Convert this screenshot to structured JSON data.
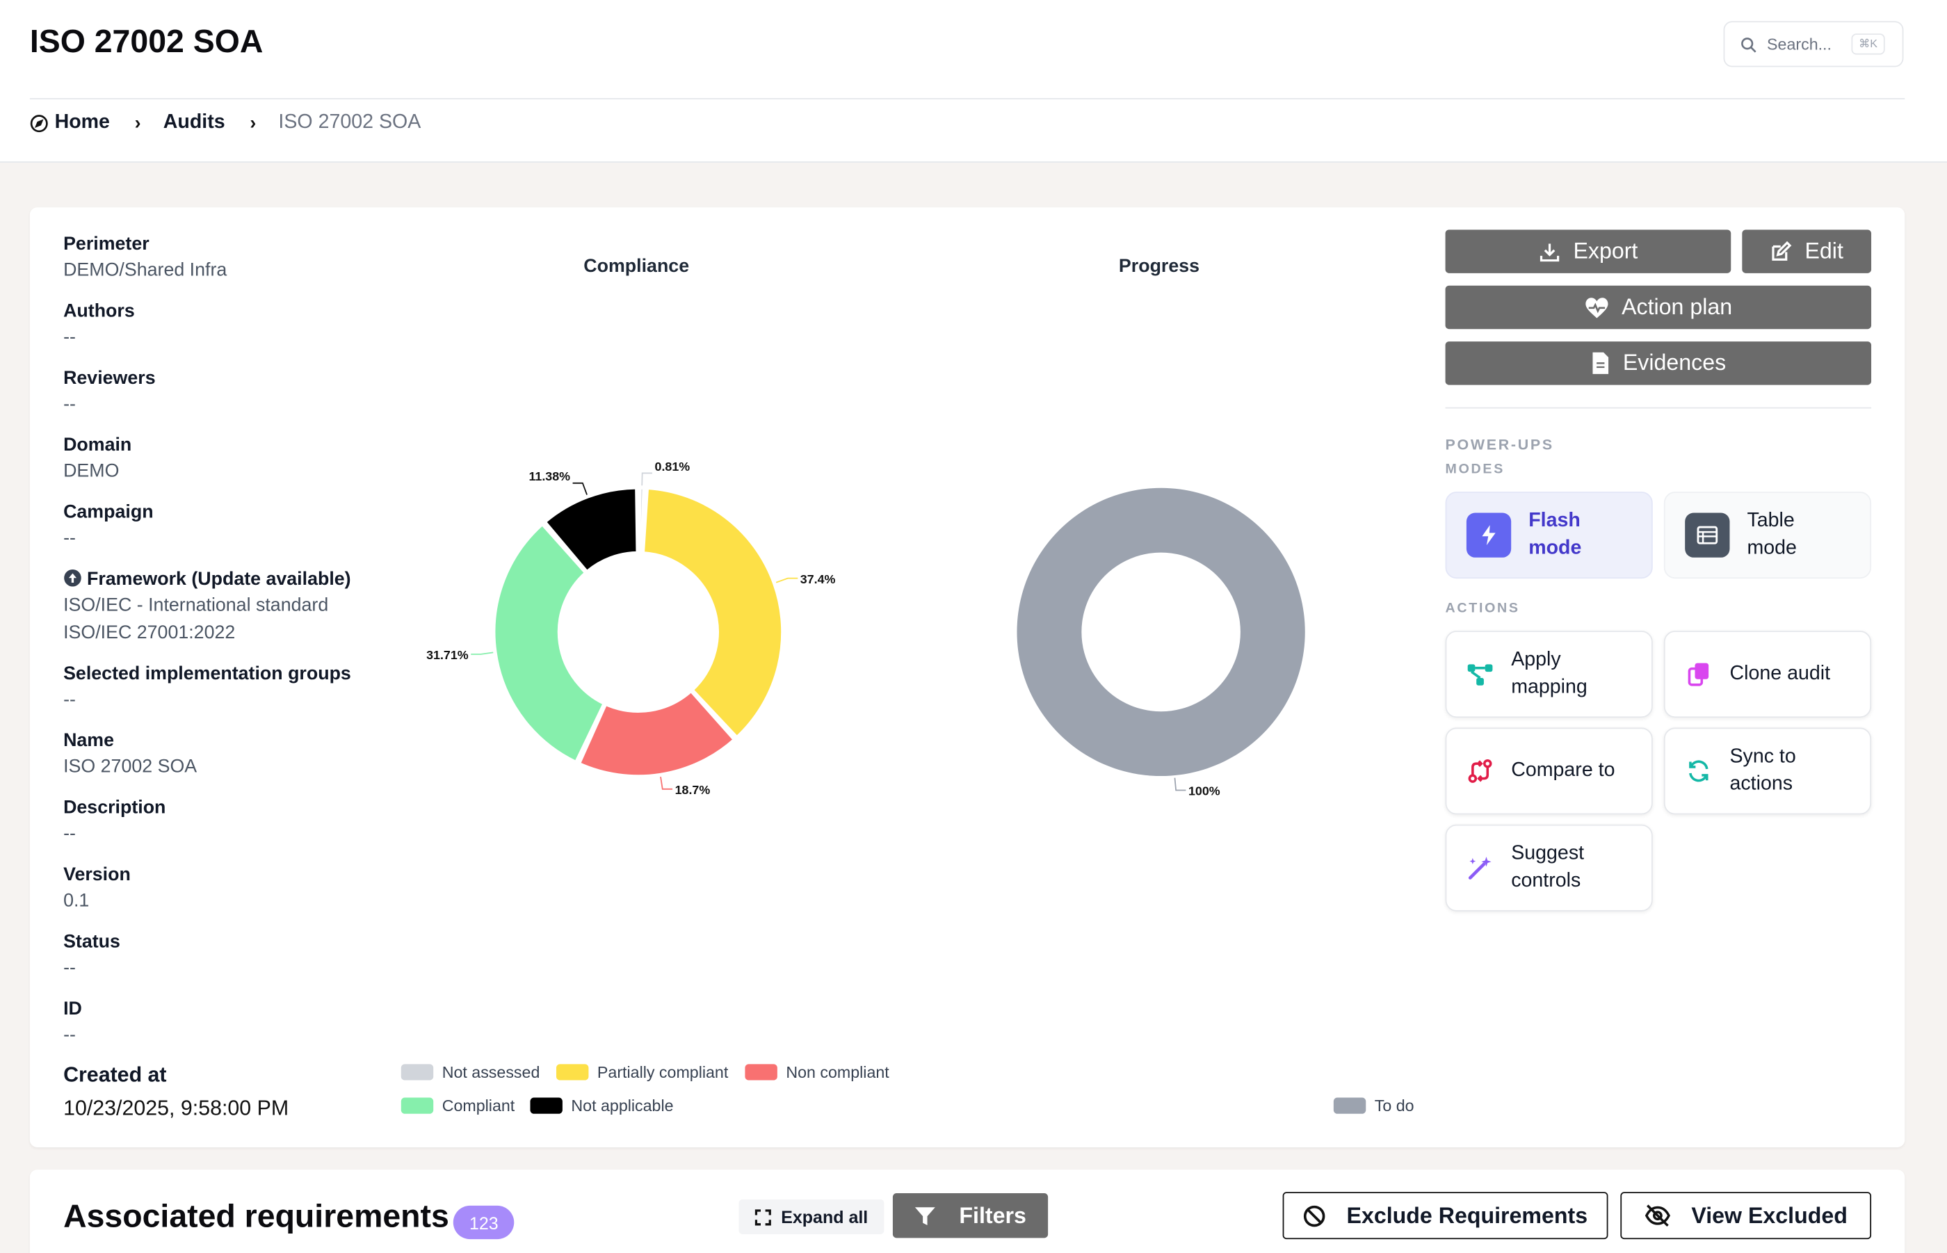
{
  "page": {
    "title": "ISO 27002 SOA"
  },
  "search": {
    "placeholder": "Search...",
    "shortcut": "⌘K"
  },
  "breadcrumb": {
    "home": "Home",
    "audits": "Audits",
    "current": "ISO 27002 SOA"
  },
  "meta": {
    "perimeter_label": "Perimeter",
    "perimeter_value": "DEMO/Shared Infra",
    "authors_label": "Authors",
    "authors_value": "--",
    "reviewers_label": "Reviewers",
    "reviewers_value": "--",
    "domain_label": "Domain",
    "domain_value": "DEMO",
    "campaign_label": "Campaign",
    "campaign_value": "--",
    "framework_label": "Framework (Update available)",
    "framework_value_1": "ISO/IEC - International standard",
    "framework_value_2": "ISO/IEC 27001:2022",
    "groups_label": "Selected implementation groups",
    "groups_value": "--",
    "name_label": "Name",
    "name_value": "ISO 27002 SOA",
    "description_label": "Description",
    "description_value": "--",
    "version_label": "Version",
    "version_value": "0.1",
    "status_label": "Status",
    "status_value": "--",
    "id_label": "ID",
    "id_value": "--",
    "created_label": "Created at",
    "created_value": "10/23/2025, 9:58:00 PM"
  },
  "chart_data": [
    {
      "type": "pie",
      "title": "Compliance",
      "labels": [
        "Not assessed",
        "Partially compliant",
        "Non compliant",
        "Compliant",
        "Not applicable"
      ],
      "values": [
        0.81,
        37.4,
        18.7,
        31.71,
        11.38
      ],
      "value_labels": [
        "0.81%",
        "37.4%",
        "18.7%",
        "31.71%",
        "11.38%"
      ],
      "colors": [
        "#d1d5db",
        "#fde047",
        "#f87171",
        "#86efac",
        "#000000"
      ],
      "legend": "bottom"
    },
    {
      "type": "pie",
      "title": "Progress",
      "labels": [
        "To do"
      ],
      "values": [
        100
      ],
      "value_labels": [
        "100%"
      ],
      "colors": [
        "#9ca3af"
      ],
      "legend": "bottom-right"
    }
  ],
  "actions": {
    "export": "Export",
    "edit": "Edit",
    "action_plan": "Action plan",
    "evidences": "Evidences",
    "power_ups": "POWER-UPS",
    "modes": "MODES",
    "actions_label": "ACTIONS",
    "flash_1": "Flash",
    "flash_2": "mode",
    "table_1": "Table",
    "table_2": "mode",
    "apply_1": "Apply",
    "apply_2": "mapping",
    "clone": "Clone audit",
    "compare": "Compare to",
    "sync_1": "Sync to",
    "sync_2": "actions",
    "suggest_1": "Suggest",
    "suggest_2": "controls"
  },
  "requirements": {
    "title": "Associated requirements",
    "count": "123",
    "expand": "Expand all",
    "filters": "Filters",
    "exclude": "Exclude Requirements",
    "view_excluded": "View Excluded"
  }
}
